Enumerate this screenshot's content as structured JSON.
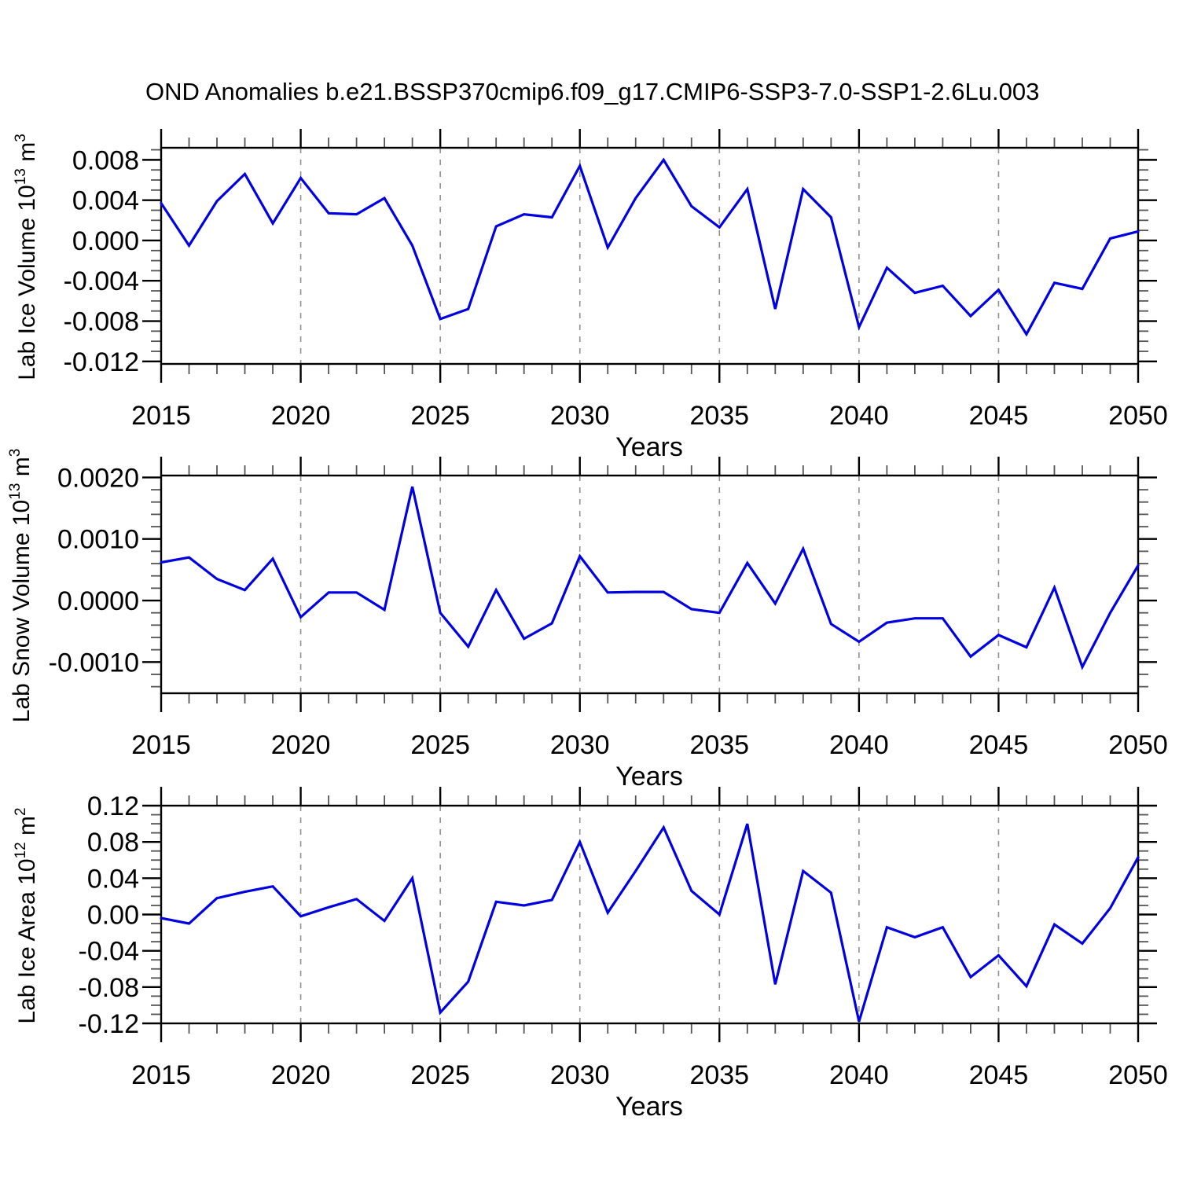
{
  "header": {
    "title": "OND Anomalies b.e21.BSSP370cmip6.f09_g17.CMIP6-SSP3-7.0-SSP1-2.6Lu.003"
  },
  "chart_data": [
    {
      "type": "line",
      "name": "lab-ice-volume",
      "title": "",
      "xlabel": "Years",
      "ylabel": {
        "text": "Lab Ice Volume 10",
        "exp": "13",
        "unit": " m",
        "unit_exp": "3"
      },
      "x": [
        2015,
        2016,
        2017,
        2018,
        2019,
        2020,
        2021,
        2022,
        2023,
        2024,
        2025,
        2026,
        2027,
        2028,
        2029,
        2030,
        2031,
        2032,
        2033,
        2034,
        2035,
        2036,
        2037,
        2038,
        2039,
        2040,
        2041,
        2042,
        2043,
        2044,
        2045,
        2046,
        2047,
        2048,
        2049,
        2050
      ],
      "values": [
        0.0037,
        -0.0005,
        0.0039,
        0.0066,
        0.0017,
        0.0062,
        0.0027,
        0.0026,
        0.0042,
        -0.0005,
        -0.0078,
        -0.0068,
        0.0014,
        0.0026,
        0.0023,
        0.0074,
        -0.0007,
        0.0042,
        0.008,
        0.0034,
        0.0013,
        0.0051,
        -0.0068,
        0.0051,
        0.0023,
        -0.0086,
        -0.0027,
        -0.0052,
        -0.0045,
        -0.0075,
        -0.0049,
        -0.0093,
        -0.0042,
        -0.0048,
        0.0002,
        0.0009
      ],
      "ylim": [
        -0.01225,
        0.0092
      ],
      "yticks": {
        "values": [
          0.008,
          0.004,
          0.0,
          -0.004,
          -0.008,
          -0.012
        ],
        "labels": [
          "0.008",
          "0.004",
          "0.000",
          "-0.004",
          "-0.008",
          "-0.012"
        ]
      },
      "y_minor_step": 0.001,
      "xlim": [
        2015,
        2050
      ],
      "xticks": {
        "values": [
          2015,
          2020,
          2025,
          2030,
          2035,
          2040,
          2045,
          2050
        ],
        "labels": [
          "2015",
          "2020",
          "2025",
          "2030",
          "2035",
          "2040",
          "2045",
          "2050"
        ]
      },
      "x_minor_step": 1,
      "grid_x": [
        2020,
        2025,
        2030,
        2035,
        2040,
        2045
      ],
      "grid_style": "dashed",
      "line_color": "#0000e0"
    },
    {
      "type": "line",
      "name": "lab-snow-volume",
      "title": "",
      "xlabel": "Years",
      "ylabel": {
        "text": "Lab Snow Volume 10",
        "exp": "13",
        "unit": " m",
        "unit_exp": "3"
      },
      "x": [
        2015,
        2016,
        2017,
        2018,
        2019,
        2020,
        2021,
        2022,
        2023,
        2024,
        2025,
        2026,
        2027,
        2028,
        2029,
        2030,
        2031,
        2032,
        2033,
        2034,
        2035,
        2036,
        2037,
        2038,
        2039,
        2040,
        2041,
        2042,
        2043,
        2044,
        2045,
        2046,
        2047,
        2048,
        2049,
        2050
      ],
      "values": [
        0.00062,
        0.0007,
        0.00035,
        0.00017,
        0.00068,
        -0.00027,
        0.00013,
        0.00013,
        -0.00015,
        0.00185,
        -0.0002,
        -0.00075,
        0.00017,
        -0.00062,
        -0.00037,
        0.00072,
        0.00013,
        0.00014,
        0.00014,
        -0.00014,
        -0.0002,
        0.00061,
        -5e-05,
        0.00084,
        -0.00038,
        -0.00067,
        -0.00036,
        -0.00029,
        -0.00029,
        -0.00091,
        -0.00056,
        -0.00076,
        0.00021,
        -0.00108,
        -0.0002,
        0.00057
      ],
      "ylim": [
        -0.001507,
        0.002031
      ],
      "yticks": {
        "values": [
          0.002,
          0.001,
          0.0,
          -0.001
        ],
        "labels": [
          "0.0020",
          "0.0010",
          "0.0000",
          "-0.0010"
        ]
      },
      "y_minor_step": 0.0002,
      "xlim": [
        2015,
        2050
      ],
      "xticks": {
        "values": [
          2015,
          2020,
          2025,
          2030,
          2035,
          2040,
          2045,
          2050
        ],
        "labels": [
          "2015",
          "2020",
          "2025",
          "2030",
          "2035",
          "2040",
          "2045",
          "2050"
        ]
      },
      "x_minor_step": 1,
      "grid_x": [
        2020,
        2025,
        2030,
        2035,
        2040,
        2045
      ],
      "grid_style": "dashed",
      "line_color": "#0000e0"
    },
    {
      "type": "line",
      "name": "lab-ice-area",
      "title": "",
      "xlabel": "Years",
      "ylabel": {
        "text": "Lab Ice Area 10",
        "exp": "12",
        "unit": " m",
        "unit_exp": "2"
      },
      "x": [
        2015,
        2016,
        2017,
        2018,
        2019,
        2020,
        2021,
        2022,
        2023,
        2024,
        2025,
        2026,
        2027,
        2028,
        2029,
        2030,
        2031,
        2032,
        2033,
        2034,
        2035,
        2036,
        2037,
        2038,
        2039,
        2040,
        2041,
        2042,
        2043,
        2044,
        2045,
        2046,
        2047,
        2048,
        2049,
        2050
      ],
      "values": [
        -0.004,
        -0.01,
        0.018,
        0.025,
        0.031,
        -0.002,
        0.008,
        0.017,
        -0.007,
        0.04,
        -0.108,
        -0.074,
        0.014,
        0.01,
        0.016,
        0.08,
        0.002,
        0.048,
        0.096,
        0.026,
        0.0,
        0.1,
        -0.077,
        0.048,
        0.024,
        -0.118,
        -0.014,
        -0.025,
        -0.014,
        -0.069,
        -0.045,
        -0.079,
        -0.011,
        -0.032,
        0.007,
        0.063
      ],
      "ylim": [
        -0.12,
        0.12
      ],
      "yticks": {
        "values": [
          0.12,
          0.08,
          0.04,
          0.0,
          -0.04,
          -0.08,
          -0.12
        ],
        "labels": [
          "0.12",
          "0.08",
          "0.04",
          "0.00",
          "-0.04",
          "-0.08",
          "-0.12"
        ]
      },
      "y_minor_step": 0.01,
      "xlim": [
        2015,
        2050
      ],
      "xticks": {
        "values": [
          2015,
          2020,
          2025,
          2030,
          2035,
          2040,
          2045,
          2050
        ],
        "labels": [
          "2015",
          "2020",
          "2025",
          "2030",
          "2035",
          "2040",
          "2045",
          "2050"
        ]
      },
      "x_minor_step": 1,
      "grid_x": [
        2020,
        2025,
        2030,
        2035,
        2040,
        2045
      ],
      "grid_style": "dashed",
      "line_color": "#0000e0"
    }
  ]
}
